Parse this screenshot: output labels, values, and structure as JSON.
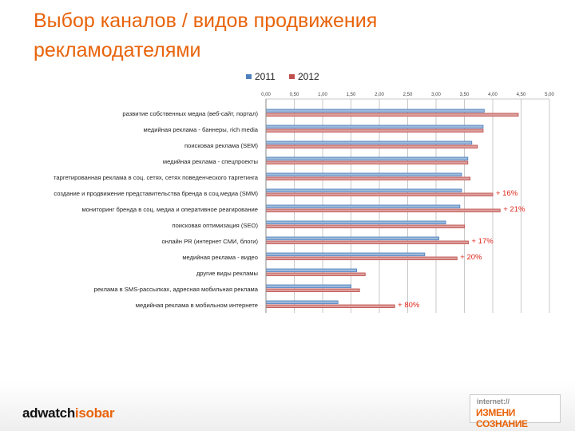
{
  "slide": {
    "title": "Выбор каналов / видов продвижения рекламодателями"
  },
  "chart_data": {
    "type": "bar",
    "orientation": "horizontal",
    "xlim": [
      0,
      5
    ],
    "xticks": [
      "0,00",
      "0,50",
      "1,00",
      "1,50",
      "2,00",
      "2,50",
      "3,00",
      "3,50",
      "4,00",
      "4,50",
      "5,00"
    ],
    "xtick_values": [
      0,
      0.5,
      1,
      1.5,
      2,
      2.5,
      3,
      3.5,
      4,
      4.5,
      5
    ],
    "grid": true,
    "legend_position": "top",
    "categories": [
      "развитие собственных медиа (веб-сайт, портал)",
      "медийная реклама - баннеры, rich media",
      "поисковая реклама (SEM)",
      "медийная реклама - спецпроекты",
      "таргетированная реклама в соц. сетях, сетях поведенческого таргетинга",
      "создание и продвижение представительства бренда в соц.медиа (SMM)",
      "мониторинг бренда в соц. медиа и оперативное реагирование",
      "поисковая оптимизация (SEO)",
      "онлайн PR (интернет СМИ, блоги)",
      "медийная реклама - видео",
      "другие виды рекламы",
      "реклама в SMS-рассылках, адресная мобильная реклама",
      "медийная реклама в мобильном интернете"
    ],
    "series": [
      {
        "name": "2011",
        "color": "#4f81bd",
        "values": [
          3.85,
          3.83,
          3.63,
          3.56,
          3.45,
          3.45,
          3.42,
          3.17,
          3.05,
          2.8,
          1.6,
          1.5,
          1.27
        ]
      },
      {
        "name": "2012",
        "color": "#c0504d",
        "values": [
          4.45,
          3.83,
          3.73,
          3.56,
          3.6,
          4.0,
          4.13,
          3.5,
          3.57,
          3.37,
          1.75,
          1.65,
          2.27
        ]
      }
    ],
    "annotations": [
      {
        "category_index": 5,
        "text": "+ 16%"
      },
      {
        "category_index": 6,
        "text": "+ 21%"
      },
      {
        "category_index": 8,
        "text": "+ 17%"
      },
      {
        "category_index": 9,
        "text": "+ 20%"
      },
      {
        "category_index": 12,
        "text": "+ 80%"
      }
    ],
    "annotation_color": "#e0261b"
  },
  "footer": {
    "logo_left_part1": "adwatch",
    "logo_left_part2": "isobar",
    "logo_right_line1": "internet://",
    "logo_right_line2": "ИЗМЕНИ СОЗНАНИЕ"
  }
}
